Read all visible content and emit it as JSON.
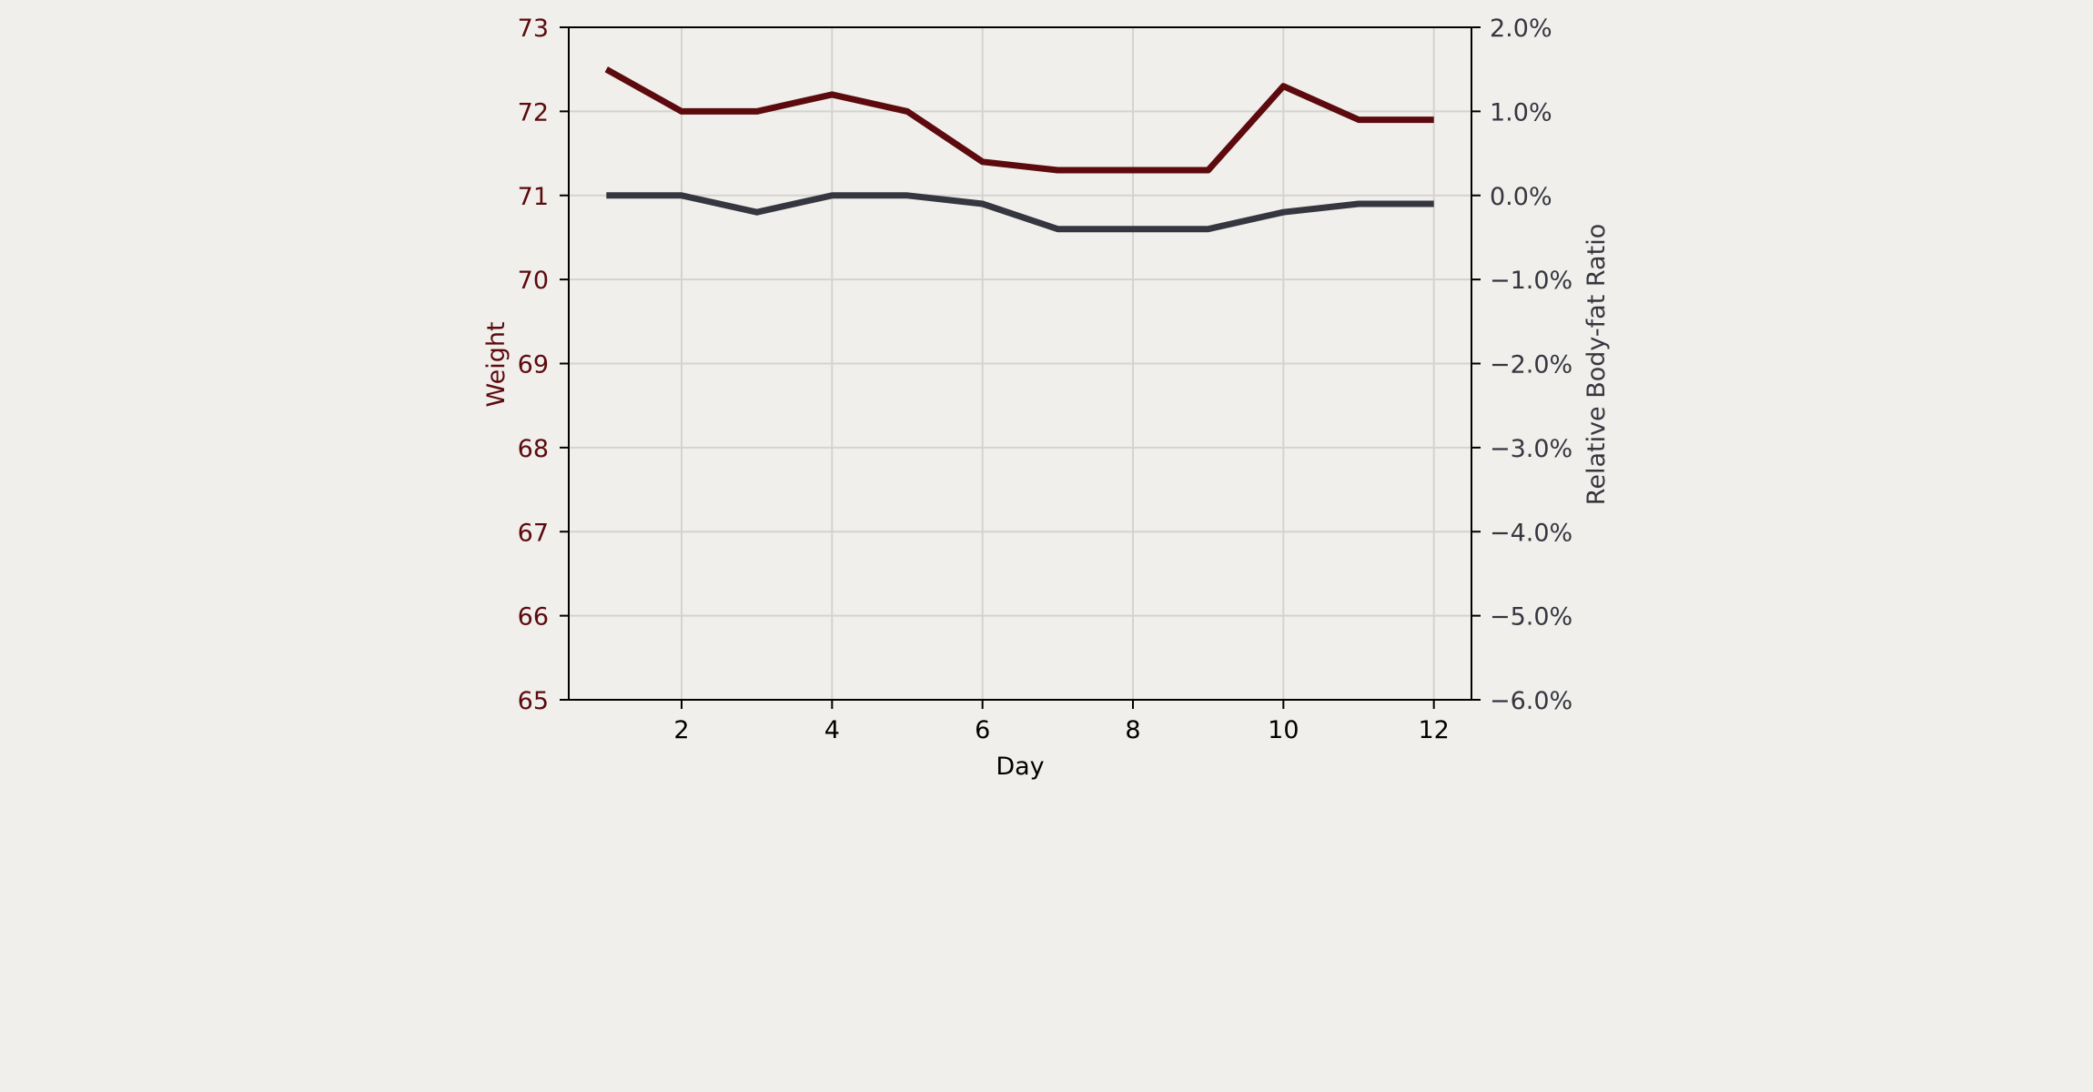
{
  "chart_data": {
    "type": "line",
    "xlabel": "Day",
    "ylabel_left": "Weight",
    "ylabel_right": "Relative Body-fat Ratio",
    "x": [
      1,
      2,
      3,
      4,
      5,
      6,
      7,
      8,
      9,
      10,
      11,
      12
    ],
    "xlim": [
      0.5,
      12.5
    ],
    "x_ticks": [
      2,
      4,
      6,
      8,
      10,
      12
    ],
    "x_tick_labels": [
      "2",
      "4",
      "6",
      "8",
      "10",
      "12"
    ],
    "ylim_left": [
      65,
      73
    ],
    "y_ticks_left": [
      65,
      66,
      67,
      68,
      69,
      70,
      71,
      72,
      73
    ],
    "y_tick_labels_left": [
      "65",
      "66",
      "67",
      "68",
      "69",
      "70",
      "71",
      "72",
      "73"
    ],
    "ylim_right": [
      -6.0,
      2.0
    ],
    "y_ticks_right": [
      -6.0,
      -5.0,
      -4.0,
      -3.0,
      -2.0,
      -1.0,
      0.0,
      1.0,
      2.0
    ],
    "y_tick_labels_right": [
      "−6.0%",
      "−5.0%",
      "−4.0%",
      "−3.0%",
      "−2.0%",
      "−1.0%",
      "0.0%",
      "1.0%",
      "2.0%"
    ],
    "grid": true,
    "series": [
      {
        "axis": "left",
        "color": "#5c0a0e",
        "values": [
          72.5,
          72.0,
          72.0,
          72.2,
          72.0,
          71.4,
          71.3,
          71.3,
          71.3,
          72.3,
          71.9,
          71.9
        ]
      },
      {
        "axis": "right",
        "color": "#363640",
        "values": [
          0.0,
          0.0,
          -0.2,
          0.0,
          0.0,
          -0.1,
          -0.4,
          -0.4,
          -0.4,
          -0.2,
          -0.1,
          -0.1
        ]
      }
    ],
    "colors": {
      "background": "#f0efeb",
      "grid": "#d4d3cf",
      "axis": "#000000",
      "left_axis_text": "#5c0a0e",
      "right_axis_text": "#363640",
      "x_axis_text": "#000000"
    }
  }
}
